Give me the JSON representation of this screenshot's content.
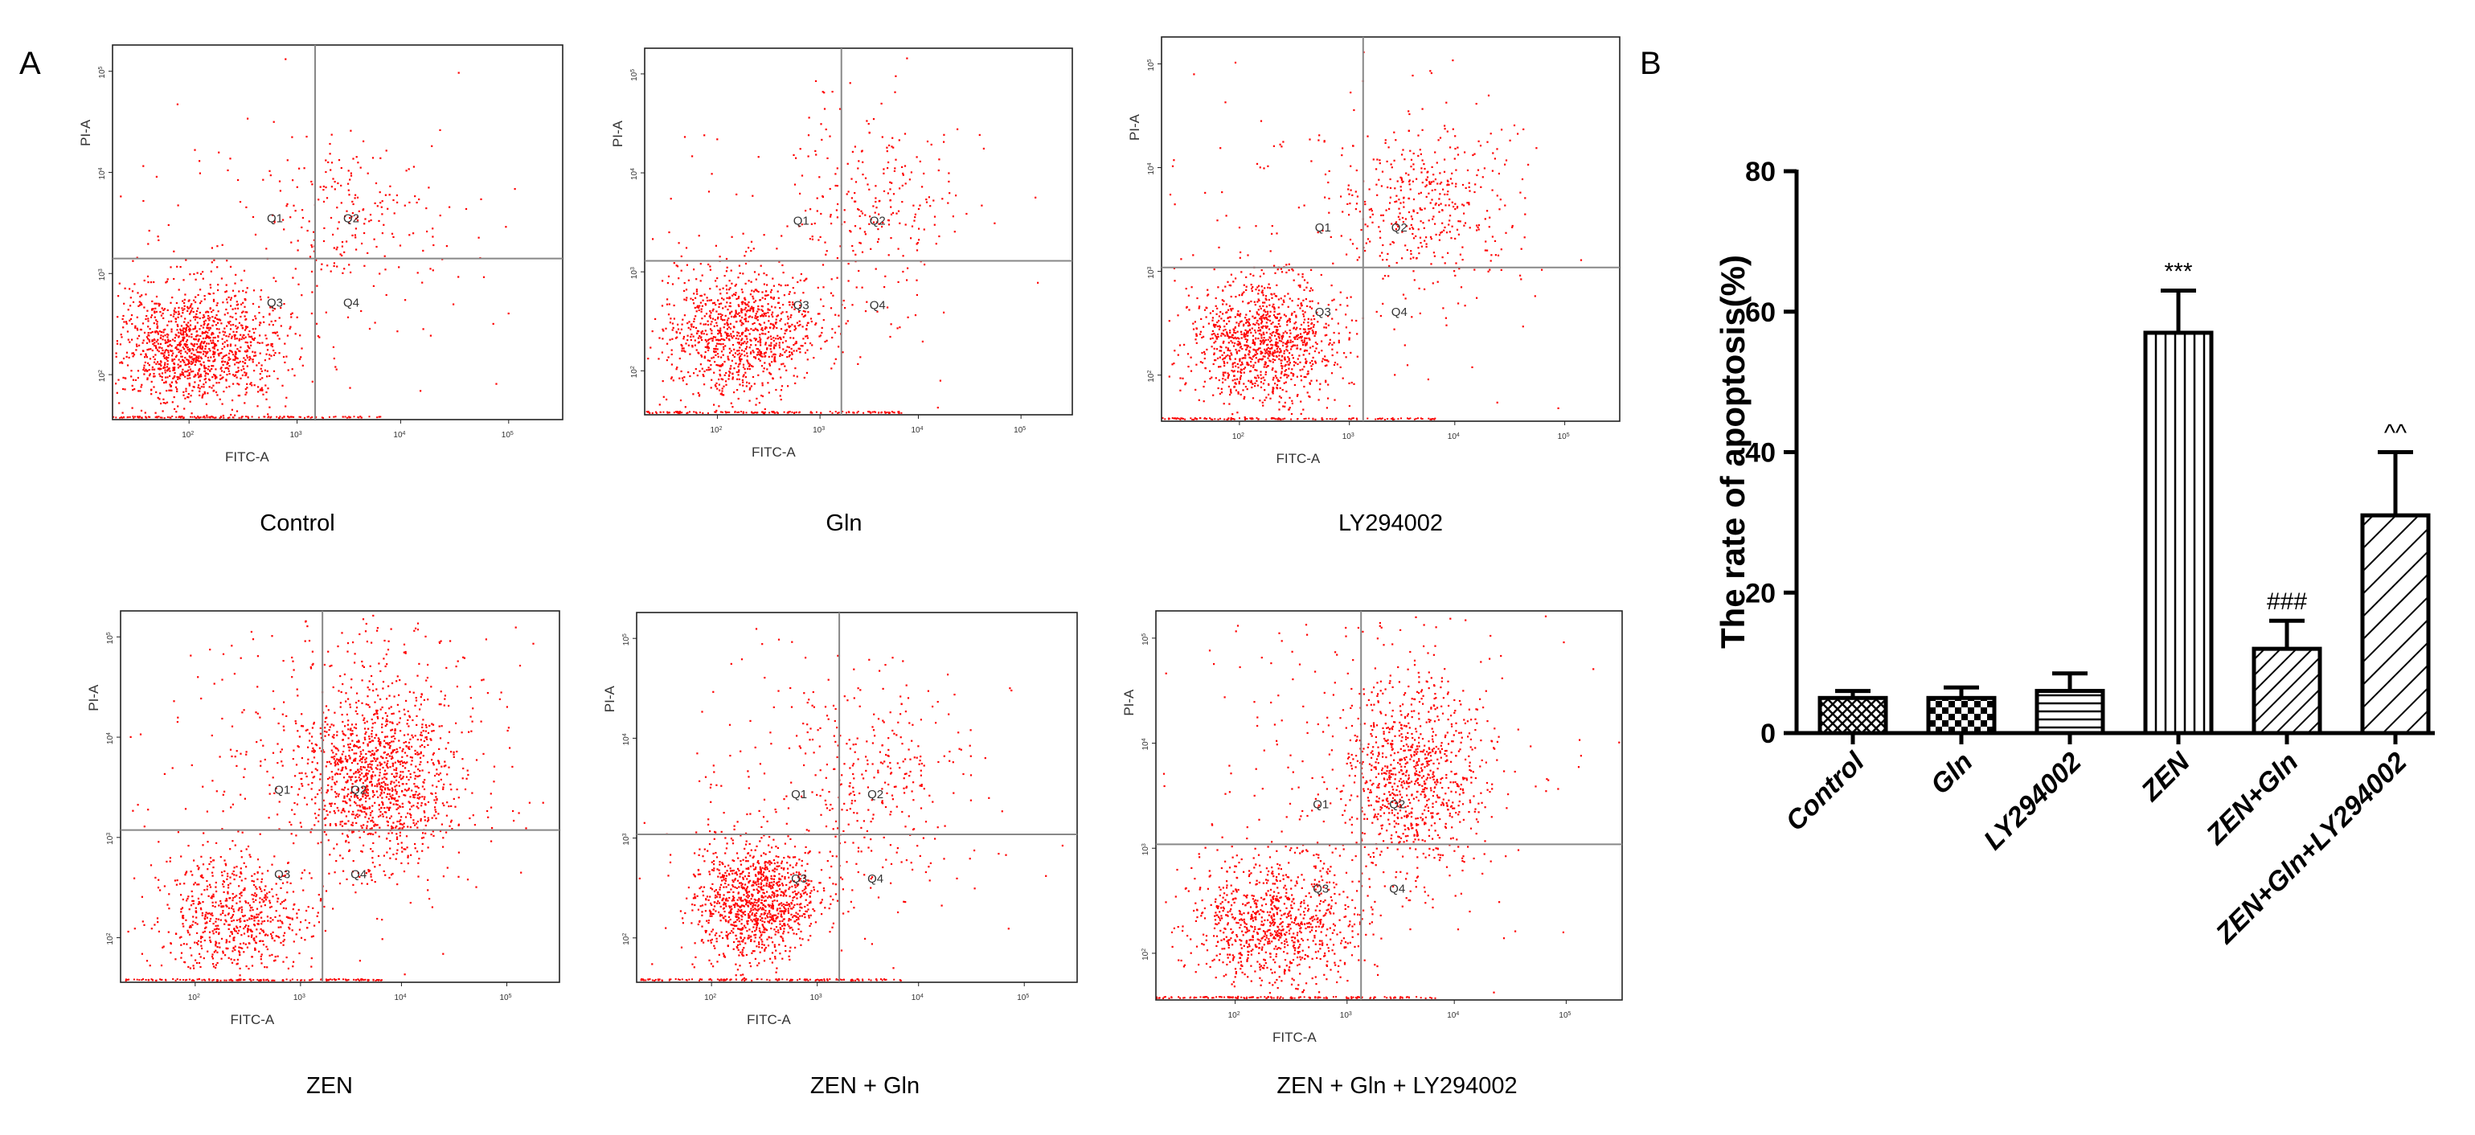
{
  "figure": {
    "panel_a_letter": "A",
    "panel_b_letter": "B"
  },
  "flow_panels": [
    {
      "caption": "Control",
      "x_axis_label": "FITC-A",
      "y_axis_label": "PI-A",
      "quadrant_labels": [
        "Q1",
        "Q2",
        "Q3",
        "Q4"
      ],
      "x_tick_labels": [
        "10^2",
        "10^3",
        "10^4",
        "10^5"
      ],
      "y_tick_labels": [
        "10^2",
        "10^3",
        "10^4",
        "10^5"
      ]
    },
    {
      "caption": "Gln",
      "x_axis_label": "FITC-A",
      "y_axis_label": "PI-A",
      "quadrant_labels": [
        "Q1",
        "Q2",
        "Q3",
        "Q4"
      ],
      "x_tick_labels": [
        "10^2",
        "10^3",
        "10^4",
        "10^5"
      ],
      "y_tick_labels": [
        "10^2",
        "10^3",
        "10^4",
        "10^5"
      ]
    },
    {
      "caption": "LY294002",
      "x_axis_label": "FITC-A",
      "y_axis_label": "PI-A",
      "quadrant_labels": [
        "Q1",
        "Q2",
        "Q3",
        "Q4"
      ],
      "x_tick_labels": [
        "10^2",
        "10^3",
        "10^4",
        "10^5"
      ],
      "y_tick_labels": [
        "10^2",
        "10^3",
        "10^4",
        "10^5"
      ]
    },
    {
      "caption": "ZEN",
      "x_axis_label": "FITC-A",
      "y_axis_label": "PI-A",
      "quadrant_labels": [
        "Q1",
        "Q2",
        "Q3",
        "Q4"
      ],
      "x_tick_labels": [
        "10^2",
        "10^3",
        "10^4",
        "10^5"
      ],
      "y_tick_labels": [
        "10^2",
        "10^3",
        "10^4",
        "10^5"
      ]
    },
    {
      "caption": "ZEN + Gln",
      "x_axis_label": "FITC-A",
      "y_axis_label": "PI-A",
      "quadrant_labels": [
        "Q1",
        "Q2",
        "Q3",
        "Q4"
      ],
      "x_tick_labels": [
        "10^2",
        "10^3",
        "10^4",
        "10^5"
      ],
      "y_tick_labels": [
        "10^2",
        "10^3",
        "10^4",
        "10^5"
      ]
    },
    {
      "caption": "ZEN + Gln + LY294002",
      "x_axis_label": "FITC-A",
      "y_axis_label": "PI-A",
      "quadrant_labels": [
        "Q1",
        "Q2",
        "Q3",
        "Q4"
      ],
      "x_tick_labels": [
        "10^2",
        "10^3",
        "10^4",
        "10^5"
      ],
      "y_tick_labels": [
        "10^2",
        "10^3",
        "10^4",
        "10^5"
      ]
    }
  ],
  "chart_data": {
    "type": "bar",
    "title": "",
    "xlabel": "",
    "ylabel": "The rate of apoptosis(%)",
    "ylim": [
      0,
      80
    ],
    "yticks": [
      0,
      20,
      40,
      60,
      80
    ],
    "categories": [
      "Control",
      "Gln",
      "LY294002",
      "ZEN",
      "ZEN+Gln",
      "ZEN+Gln+LY294002"
    ],
    "values": [
      5,
      5,
      6,
      57,
      12,
      31
    ],
    "errors": [
      1,
      1.5,
      2.5,
      6,
      4,
      9
    ],
    "significance": [
      "",
      "",
      "",
      "***",
      "###",
      "^^"
    ],
    "patterns": [
      "crosshatch",
      "checker",
      "horizontal",
      "vertical",
      "diagonal",
      "diagonal-wide"
    ],
    "colors": {
      "bar_fill": "#ffffff",
      "bar_stroke": "#000000"
    }
  },
  "colors": {
    "dots": "#ff0000",
    "gate_lines": "#888888",
    "frame": "#222222"
  }
}
